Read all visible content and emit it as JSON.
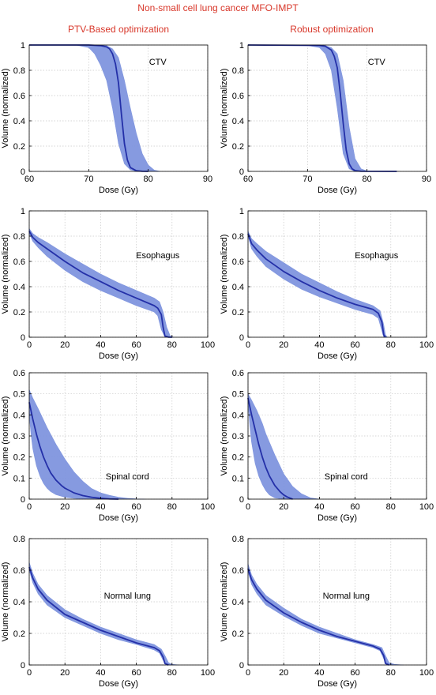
{
  "figure": {
    "title": "Non-small cell lung cancer MFO-IMPT",
    "column_titles": [
      "PTV-Based optimization",
      "Robust optimization"
    ],
    "colors": {
      "title": "#d8372a",
      "band": "#7f95de",
      "line": "#2430a8",
      "grid": "#c8c8c8"
    }
  },
  "chart_data": [
    {
      "type": "line",
      "id": "ctv-ptv",
      "structure": "CTV",
      "method": "PTV-Based optimization",
      "xlabel": "Dose (Gy)",
      "ylabel": "Volume (normalized)",
      "xlim": [
        60,
        90
      ],
      "ylim": [
        0,
        1
      ],
      "xticks": [
        "60",
        "70",
        "80",
        "90"
      ],
      "yticks": [
        "0",
        "0.2",
        "0.4",
        "0.6",
        "0.8",
        "1"
      ],
      "grid": true,
      "annotation": "CTV",
      "series": [
        {
          "role": "nominal",
          "x": [
            60,
            70,
            72,
            73,
            73.5,
            74,
            74.5,
            75,
            75.5,
            76,
            76.5,
            77,
            78,
            79,
            80
          ],
          "y": [
            1,
            1,
            0.995,
            0.985,
            0.97,
            0.93,
            0.85,
            0.7,
            0.45,
            0.22,
            0.09,
            0.03,
            0.005,
            0.001,
            0
          ]
        },
        {
          "role": "upper",
          "x": [
            60,
            70,
            72,
            73,
            74,
            75,
            76,
            77,
            78,
            79,
            80,
            81,
            82
          ],
          "y": [
            1,
            1,
            0.999,
            0.995,
            0.97,
            0.9,
            0.72,
            0.5,
            0.3,
            0.14,
            0.05,
            0.01,
            0
          ]
        },
        {
          "role": "lower",
          "x": [
            60,
            68,
            70,
            71,
            72,
            73,
            74,
            75,
            76,
            77,
            78,
            79
          ],
          "y": [
            1,
            0.998,
            0.98,
            0.93,
            0.84,
            0.72,
            0.5,
            0.22,
            0.06,
            0.012,
            0.002,
            0
          ]
        }
      ]
    },
    {
      "type": "line",
      "id": "ctv-robust",
      "structure": "CTV",
      "method": "Robust optimization",
      "xlabel": "Dose (Gy)",
      "ylabel": "Volume (normalized)",
      "xlim": [
        60,
        90
      ],
      "ylim": [
        0,
        1
      ],
      "xticks": [
        "60",
        "70",
        "80",
        "90"
      ],
      "yticks": [
        "0",
        "0.2",
        "0.4",
        "0.6",
        "0.8",
        "1"
      ],
      "grid": true,
      "annotation": "CTV",
      "series": [
        {
          "role": "nominal",
          "x": [
            60,
            72,
            73,
            74,
            74.5,
            75,
            75.5,
            76,
            76.5,
            77,
            77.5,
            78,
            79,
            85
          ],
          "y": [
            1,
            0.997,
            0.99,
            0.96,
            0.91,
            0.82,
            0.62,
            0.38,
            0.17,
            0.06,
            0.02,
            0.006,
            0.001,
            0
          ]
        },
        {
          "role": "upper",
          "x": [
            60,
            72,
            73,
            74,
            75,
            76,
            77,
            78,
            79,
            80,
            81
          ],
          "y": [
            1,
            0.999,
            0.995,
            0.98,
            0.93,
            0.72,
            0.35,
            0.1,
            0.02,
            0.003,
            0
          ]
        },
        {
          "role": "lower",
          "x": [
            60,
            70,
            72,
            73,
            74,
            75,
            76,
            77,
            78
          ],
          "y": [
            1,
            0.996,
            0.98,
            0.93,
            0.8,
            0.5,
            0.14,
            0.02,
            0
          ]
        }
      ]
    },
    {
      "type": "line",
      "id": "esophagus-ptv",
      "structure": "Esophagus",
      "method": "PTV-Based optimization",
      "xlabel": "Dose (Gy)",
      "ylabel": "Volume (normalized)",
      "xlim": [
        0,
        100
      ],
      "ylim": [
        0,
        1
      ],
      "xticks": [
        "0",
        "20",
        "40",
        "60",
        "80",
        "100"
      ],
      "yticks": [
        "0",
        "0.2",
        "0.4",
        "0.6",
        "0.8",
        "1"
      ],
      "grid": true,
      "annotation": "Esophagus",
      "series": [
        {
          "role": "nominal",
          "x": [
            0,
            2,
            5,
            10,
            20,
            30,
            40,
            50,
            60,
            70,
            72,
            74,
            75,
            76,
            78,
            80
          ],
          "y": [
            0.84,
            0.79,
            0.75,
            0.7,
            0.6,
            0.51,
            0.44,
            0.37,
            0.31,
            0.25,
            0.23,
            0.18,
            0.08,
            0.01,
            0.001,
            0
          ]
        },
        {
          "role": "upper",
          "x": [
            0,
            2,
            5,
            10,
            20,
            30,
            40,
            50,
            60,
            70,
            73,
            75,
            77,
            79,
            81
          ],
          "y": [
            0.86,
            0.82,
            0.79,
            0.75,
            0.66,
            0.58,
            0.5,
            0.43,
            0.37,
            0.31,
            0.28,
            0.2,
            0.08,
            0.01,
            0
          ]
        },
        {
          "role": "lower",
          "x": [
            0,
            2,
            5,
            10,
            20,
            30,
            40,
            50,
            60,
            70,
            72,
            74,
            76,
            77
          ],
          "y": [
            0.82,
            0.76,
            0.71,
            0.64,
            0.53,
            0.44,
            0.37,
            0.31,
            0.25,
            0.2,
            0.17,
            0.06,
            0.005,
            0
          ]
        }
      ]
    },
    {
      "type": "line",
      "id": "esophagus-robust",
      "structure": "Esophagus",
      "method": "Robust optimization",
      "xlabel": "Dose (Gy)",
      "ylabel": "Volume (normalized)",
      "xlim": [
        0,
        100
      ],
      "ylim": [
        0,
        1
      ],
      "xticks": [
        "0",
        "20",
        "40",
        "60",
        "80",
        "100"
      ],
      "yticks": [
        "0",
        "0.2",
        "0.4",
        "0.6",
        "0.8",
        "1"
      ],
      "grid": true,
      "annotation": "Esophagus",
      "series": [
        {
          "role": "nominal",
          "x": [
            0,
            2,
            5,
            10,
            20,
            30,
            40,
            50,
            60,
            70,
            73,
            75,
            76,
            77
          ],
          "y": [
            0.82,
            0.74,
            0.69,
            0.62,
            0.52,
            0.44,
            0.37,
            0.31,
            0.26,
            0.22,
            0.19,
            0.12,
            0.02,
            0
          ]
        },
        {
          "role": "upper",
          "x": [
            0,
            2,
            5,
            10,
            20,
            30,
            40,
            50,
            60,
            70,
            74,
            76,
            77,
            78
          ],
          "y": [
            0.84,
            0.78,
            0.74,
            0.68,
            0.59,
            0.5,
            0.43,
            0.36,
            0.3,
            0.25,
            0.21,
            0.1,
            0.02,
            0
          ]
        },
        {
          "role": "lower",
          "x": [
            0,
            2,
            5,
            10,
            20,
            30,
            40,
            50,
            60,
            70,
            73,
            75,
            76
          ],
          "y": [
            0.8,
            0.7,
            0.64,
            0.56,
            0.46,
            0.38,
            0.32,
            0.27,
            0.22,
            0.18,
            0.15,
            0.05,
            0
          ]
        }
      ]
    },
    {
      "type": "line",
      "id": "spinal-ptv",
      "structure": "Spinal cord",
      "method": "PTV-Based optimization",
      "xlabel": "Dose (Gy)",
      "ylabel": "Volume (normalized)",
      "xlim": [
        0,
        100
      ],
      "ylim": [
        0,
        0.6
      ],
      "xticks": [
        "0",
        "20",
        "40",
        "60",
        "80",
        "100"
      ],
      "yticks": [
        "0",
        "0.1",
        "0.2",
        "0.3",
        "0.4",
        "0.5",
        "0.6"
      ],
      "grid": true,
      "annotation": "Spinal cord",
      "series": [
        {
          "role": "nominal",
          "x": [
            0,
            2,
            4,
            6,
            8,
            10,
            12,
            15,
            18,
            20,
            25,
            30,
            35,
            40,
            45,
            50
          ],
          "y": [
            0.46,
            0.38,
            0.31,
            0.25,
            0.2,
            0.16,
            0.125,
            0.09,
            0.065,
            0.052,
            0.03,
            0.017,
            0.009,
            0.004,
            0.001,
            0
          ]
        },
        {
          "role": "upper",
          "x": [
            0,
            2,
            5,
            10,
            15,
            20,
            25,
            30,
            35,
            40,
            45,
            50,
            55,
            60,
            65
          ],
          "y": [
            0.52,
            0.48,
            0.43,
            0.34,
            0.26,
            0.19,
            0.13,
            0.085,
            0.05,
            0.03,
            0.018,
            0.009,
            0.004,
            0.001,
            0
          ]
        },
        {
          "role": "lower",
          "x": [
            0,
            1,
            2,
            4,
            6,
            8,
            10,
            12,
            15,
            20,
            25,
            30,
            35,
            40
          ],
          "y": [
            0.4,
            0.31,
            0.24,
            0.16,
            0.11,
            0.075,
            0.052,
            0.036,
            0.021,
            0.009,
            0.004,
            0.0015,
            0.0005,
            0
          ]
        }
      ]
    },
    {
      "type": "line",
      "id": "spinal-robust",
      "structure": "Spinal cord",
      "method": "Robust optimization",
      "xlabel": "Dose (Gy)",
      "ylabel": "Volume (normalized)",
      "xlim": [
        0,
        100
      ],
      "ylim": [
        0,
        0.6
      ],
      "xticks": [
        "0",
        "20",
        "40",
        "60",
        "80",
        "100"
      ],
      "yticks": [
        "0",
        "0.1",
        "0.2",
        "0.3",
        "0.4",
        "0.5",
        "0.6"
      ],
      "grid": true,
      "annotation": "Spinal cord",
      "series": [
        {
          "role": "nominal",
          "x": [
            0,
            2,
            4,
            6,
            8,
            10,
            12,
            15,
            18,
            20,
            22,
            25
          ],
          "y": [
            0.48,
            0.4,
            0.33,
            0.26,
            0.2,
            0.15,
            0.11,
            0.065,
            0.035,
            0.02,
            0.01,
            0
          ]
        },
        {
          "role": "upper",
          "x": [
            0,
            2,
            5,
            8,
            10,
            15,
            20,
            25,
            30,
            35,
            40
          ],
          "y": [
            0.5,
            0.47,
            0.42,
            0.36,
            0.31,
            0.21,
            0.12,
            0.06,
            0.025,
            0.006,
            0
          ]
        },
        {
          "role": "lower",
          "x": [
            0,
            1,
            2,
            4,
            6,
            8,
            10,
            12,
            15,
            20
          ],
          "y": [
            0.46,
            0.35,
            0.27,
            0.17,
            0.11,
            0.07,
            0.04,
            0.02,
            0.006,
            0
          ]
        }
      ]
    },
    {
      "type": "line",
      "id": "lung-ptv",
      "structure": "Normal lung",
      "method": "PTV-Based optimization",
      "xlabel": "Dose (Gy)",
      "ylabel": "Volume (normalized)",
      "xlim": [
        0,
        100
      ],
      "ylim": [
        0,
        0.8
      ],
      "xticks": [
        "0",
        "20",
        "40",
        "60",
        "80",
        "100"
      ],
      "yticks": [
        "0",
        "0.2",
        "0.4",
        "0.6",
        "0.8"
      ],
      "grid": true,
      "annotation": "Normal lung",
      "series": [
        {
          "role": "nominal",
          "x": [
            0,
            2,
            5,
            10,
            20,
            30,
            40,
            50,
            60,
            70,
            73,
            75,
            76,
            78
          ],
          "y": [
            0.62,
            0.55,
            0.48,
            0.41,
            0.32,
            0.27,
            0.22,
            0.18,
            0.14,
            0.11,
            0.09,
            0.05,
            0.01,
            0
          ]
        },
        {
          "role": "upper",
          "x": [
            0,
            2,
            5,
            10,
            20,
            30,
            40,
            50,
            60,
            70,
            74,
            76,
            78,
            80,
            84
          ],
          "y": [
            0.65,
            0.58,
            0.51,
            0.44,
            0.35,
            0.29,
            0.24,
            0.2,
            0.16,
            0.13,
            0.1,
            0.06,
            0.015,
            0.004,
            0
          ]
        },
        {
          "role": "lower",
          "x": [
            0,
            2,
            5,
            10,
            20,
            30,
            40,
            50,
            60,
            70,
            73,
            75,
            77
          ],
          "y": [
            0.6,
            0.52,
            0.45,
            0.38,
            0.3,
            0.25,
            0.2,
            0.16,
            0.13,
            0.095,
            0.075,
            0.03,
            0
          ]
        }
      ]
    },
    {
      "type": "line",
      "id": "lung-robust",
      "structure": "Normal lung",
      "method": "Robust optimization",
      "xlabel": "Dose (Gy)",
      "ylabel": "Volume (normalized)",
      "xlim": [
        0,
        100
      ],
      "ylim": [
        0,
        0.8
      ],
      "xticks": [
        "0",
        "20",
        "40",
        "60",
        "80",
        "100"
      ],
      "yticks": [
        "0",
        "0.2",
        "0.4",
        "0.6",
        "0.8"
      ],
      "grid": true,
      "annotation": "Normal lung",
      "series": [
        {
          "role": "nominal",
          "x": [
            0,
            2,
            5,
            10,
            20,
            30,
            40,
            50,
            60,
            70,
            74,
            76,
            77,
            79
          ],
          "y": [
            0.61,
            0.54,
            0.48,
            0.41,
            0.33,
            0.27,
            0.22,
            0.18,
            0.15,
            0.12,
            0.1,
            0.06,
            0.01,
            0
          ]
        },
        {
          "role": "upper",
          "x": [
            0,
            2,
            5,
            10,
            20,
            30,
            40,
            50,
            60,
            70,
            75,
            77,
            79,
            82,
            87
          ],
          "y": [
            0.64,
            0.57,
            0.51,
            0.44,
            0.36,
            0.29,
            0.24,
            0.2,
            0.16,
            0.13,
            0.11,
            0.06,
            0.015,
            0.004,
            0
          ]
        },
        {
          "role": "lower",
          "x": [
            0,
            2,
            5,
            10,
            20,
            30,
            40,
            50,
            60,
            70,
            74,
            76,
            78
          ],
          "y": [
            0.59,
            0.51,
            0.45,
            0.38,
            0.31,
            0.25,
            0.2,
            0.17,
            0.14,
            0.11,
            0.09,
            0.04,
            0
          ]
        }
      ]
    }
  ]
}
